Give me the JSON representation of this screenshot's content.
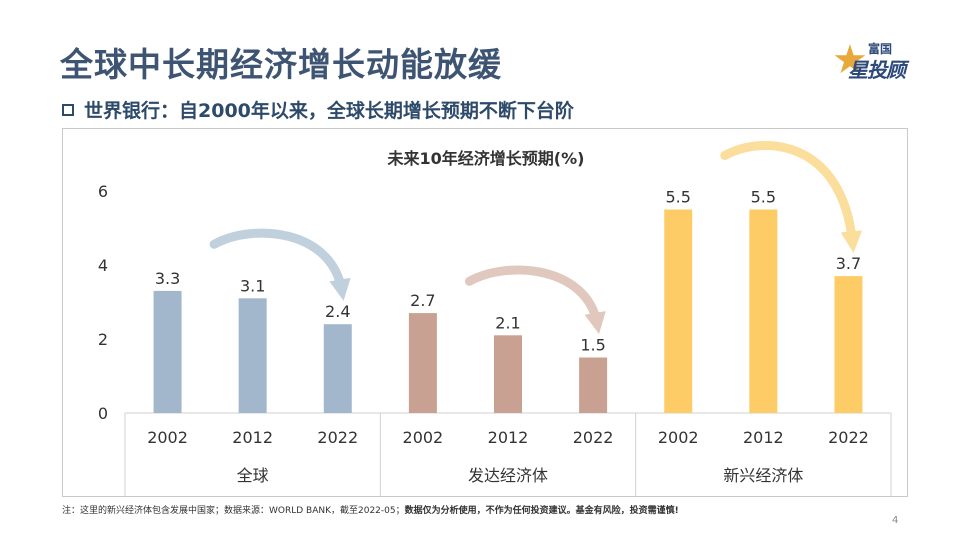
{
  "slide": {
    "title": "全球中长期经济增长动能放缓",
    "subtitle": "世界银行：自2000年以来，全球长期增长预期不断下台阶",
    "logo_top": "富国",
    "logo_main": "星投顾",
    "footnote_plain": "注：这里的新兴经济体包含发展中国家；数据来源：WORLD BANK，截至2022-05；",
    "footnote_bold": "数据仅为分析使用，不作为任何投资建议。基金有风险，投资需谨慎!",
    "page_number": "4"
  },
  "colors": {
    "title": "#3d5573",
    "global": "#a3b7cc",
    "developed": "#c9a192",
    "emerging": "#fdcc66",
    "arrow_global": "#b7c8d8",
    "arrow_developed": "#dcbfb4",
    "arrow_emerging": "#fbd98a"
  },
  "chart_data": {
    "type": "bar",
    "title": "未来10年经济增长预期(%)",
    "ylim": [
      0,
      6
    ],
    "yticks": [
      0,
      2,
      4,
      6
    ],
    "grid": false,
    "legend": "none",
    "groups": [
      {
        "name": "全球",
        "color_key": "global",
        "categories": [
          "2002",
          "2012",
          "2022"
        ],
        "values": [
          3.3,
          3.1,
          2.4
        ]
      },
      {
        "name": "发达经济体",
        "color_key": "developed",
        "categories": [
          "2002",
          "2012",
          "2022"
        ],
        "values": [
          2.7,
          2.1,
          1.5
        ]
      },
      {
        "name": "新兴经济体",
        "color_key": "emerging",
        "categories": [
          "2002",
          "2012",
          "2022"
        ],
        "values": [
          5.5,
          5.5,
          3.7
        ]
      }
    ]
  }
}
